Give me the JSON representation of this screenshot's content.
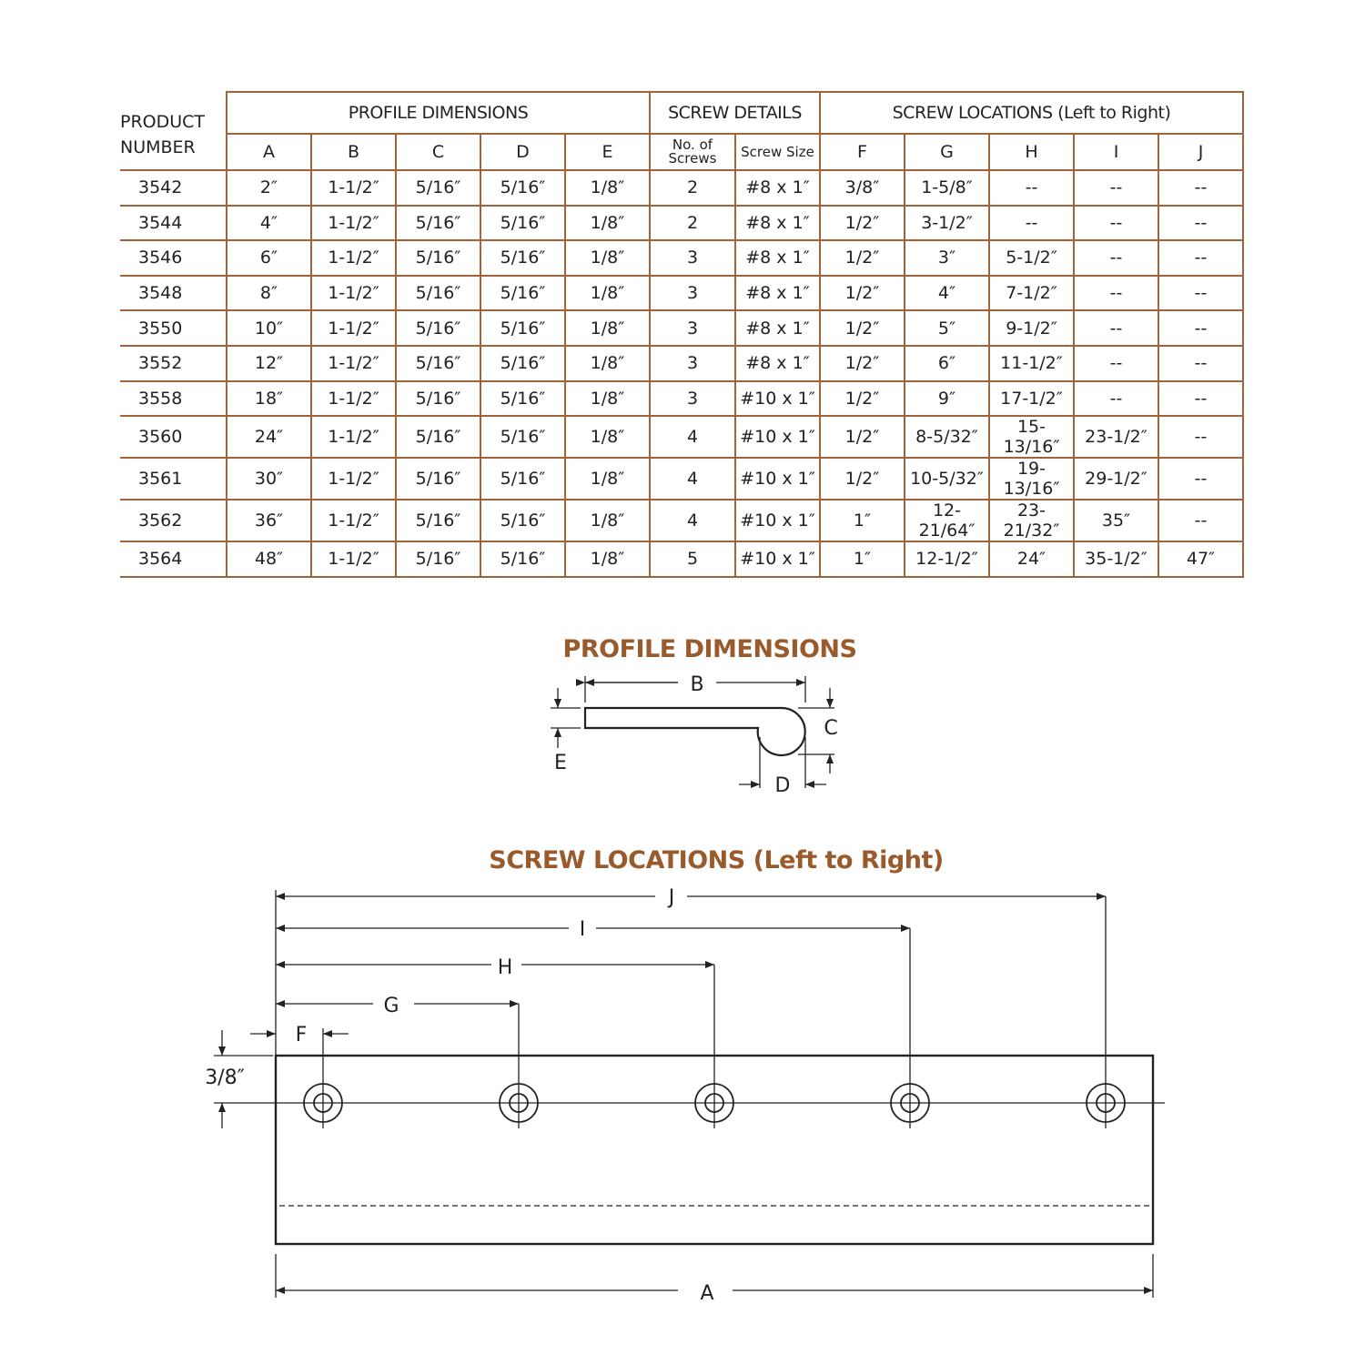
{
  "table": {
    "product_header": [
      "PRODUCT",
      "NUMBER"
    ],
    "group_headers": [
      "PROFILE DIMENSIONS",
      "SCREW DETAILS",
      "SCREW LOCATIONS (Left to Right)"
    ],
    "columns": [
      "A",
      "B",
      "C",
      "D",
      "E",
      "No. of Screws",
      "Screw Size",
      "F",
      "G",
      "H",
      "I",
      "J"
    ],
    "rows": [
      [
        "3542",
        "2″",
        "1-1/2″",
        "5/16″",
        "5/16″",
        "1/8″",
        "2",
        "#8 x 1″",
        "3/8″",
        "1-5/8″",
        "--",
        "--",
        "--"
      ],
      [
        "3544",
        "4″",
        "1-1/2″",
        "5/16″",
        "5/16″",
        "1/8″",
        "2",
        "#8 x 1″",
        "1/2″",
        "3-1/2″",
        "--",
        "--",
        "--"
      ],
      [
        "3546",
        "6″",
        "1-1/2″",
        "5/16″",
        "5/16″",
        "1/8″",
        "3",
        "#8 x 1″",
        "1/2″",
        "3″",
        "5-1/2″",
        "--",
        "--"
      ],
      [
        "3548",
        "8″",
        "1-1/2″",
        "5/16″",
        "5/16″",
        "1/8″",
        "3",
        "#8 x 1″",
        "1/2″",
        "4″",
        "7-1/2″",
        "--",
        "--"
      ],
      [
        "3550",
        "10″",
        "1-1/2″",
        "5/16″",
        "5/16″",
        "1/8″",
        "3",
        "#8 x 1″",
        "1/2″",
        "5″",
        "9-1/2″",
        "--",
        "--"
      ],
      [
        "3552",
        "12″",
        "1-1/2″",
        "5/16″",
        "5/16″",
        "1/8″",
        "3",
        "#8 x 1″",
        "1/2″",
        "6″",
        "11-1/2″",
        "--",
        "--"
      ],
      [
        "3558",
        "18″",
        "1-1/2″",
        "5/16″",
        "5/16″",
        "1/8″",
        "3",
        "#10 x 1″",
        "1/2″",
        "9″",
        "17-1/2″",
        "--",
        "--"
      ],
      [
        "3560",
        "24″",
        "1-1/2″",
        "5/16″",
        "5/16″",
        "1/8″",
        "4",
        "#10 x 1″",
        "1/2″",
        "8-5/32″",
        "15-13/16″",
        "23-1/2″",
        "--"
      ],
      [
        "3561",
        "30″",
        "1-1/2″",
        "5/16″",
        "5/16″",
        "1/8″",
        "4",
        "#10 x 1″",
        "1/2″",
        "10-5/32″",
        "19-13/16″",
        "29-1/2″",
        "--"
      ],
      [
        "3562",
        "36″",
        "1-1/2″",
        "5/16″",
        "5/16″",
        "1/8″",
        "4",
        "#10 x 1″",
        "1″",
        "12-21/64″",
        "23-21/32″",
        "35″",
        "--"
      ],
      [
        "3564",
        "48″",
        "1-1/2″",
        "5/16″",
        "5/16″",
        "1/8″",
        "5",
        "#10 x 1″",
        "1″",
        "12-1/2″",
        "24″",
        "35-1/2″",
        "47″"
      ]
    ]
  },
  "profile": {
    "title": "PROFILE DIMENSIONS",
    "labels": {
      "B": "B",
      "C": "C",
      "D": "D",
      "E": "E"
    }
  },
  "screws": {
    "title": "SCREW LOCATIONS (Left to Right)",
    "labels": {
      "F": "F",
      "G": "G",
      "H": "H",
      "I": "I",
      "J": "J",
      "A": "A",
      "offset": "3/8″"
    }
  },
  "colors": {
    "accent": "#9a5b2c",
    "rule": "#a0643a"
  }
}
